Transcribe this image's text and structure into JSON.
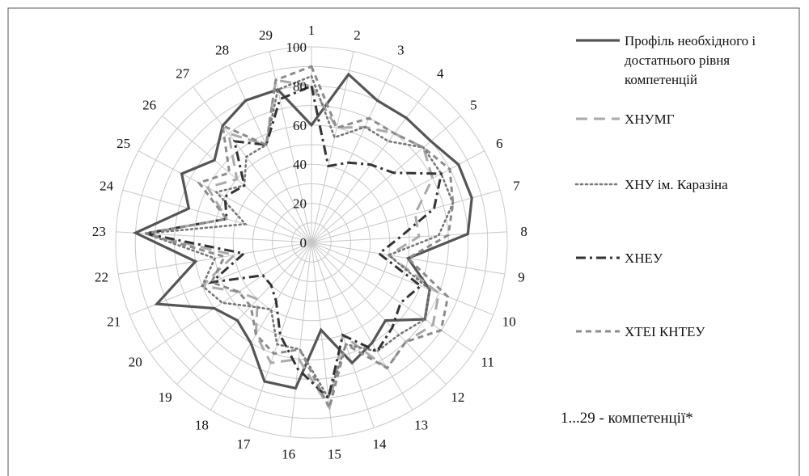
{
  "chart_data": {
    "type": "radar",
    "categories": [
      "1",
      "2",
      "3",
      "4",
      "5",
      "6",
      "7",
      "8",
      "9",
      "10",
      "11",
      "12",
      "13",
      "14",
      "15",
      "16",
      "17",
      "18",
      "19",
      "20",
      "21",
      "22",
      "23",
      "24",
      "25",
      "26",
      "27",
      "28",
      "29"
    ],
    "r_ticks": [
      "0",
      "20",
      "40",
      "60",
      "80",
      "100"
    ],
    "rlim": [
      0,
      100
    ],
    "grid": true,
    "legend_position": "right",
    "series": [
      {
        "name": [
          "Профіль необхідного і",
          "достатнього рівня",
          "компетенцій"
        ],
        "style": "solid",
        "color": "#555555",
        "values": [
          60,
          88,
          80,
          80,
          80,
          85,
          85,
          80,
          50,
          65,
          70,
          55,
          60,
          65,
          45,
          75,
          75,
          60,
          55,
          60,
          85,
          60,
          90,
          65,
          75,
          65,
          75,
          80,
          80
        ]
      },
      {
        "name": [
          "ХНУМГ"
        ],
        "style": "long-dash",
        "color": "#aaaaaa",
        "values": [
          80,
          60,
          65,
          70,
          75,
          70,
          55,
          55,
          40,
          70,
          75,
          70,
          75,
          50,
          85,
          60,
          65,
          55,
          40,
          45,
          60,
          40,
          85,
          45,
          60,
          50,
          70,
          55,
          85
        ]
      },
      {
        "name": [
          "ХНУ ім. Каразіна"
        ],
        "style": "dot",
        "color": "#777777",
        "values": [
          85,
          55,
          65,
          65,
          75,
          75,
          75,
          65,
          40,
          65,
          70,
          65,
          65,
          55,
          80,
          55,
          55,
          40,
          45,
          55,
          60,
          50,
          85,
          35,
          55,
          45,
          55,
          55,
          80
        ]
      },
      {
        "name": [
          "ХНЕУ"
        ],
        "style": "dash-dot",
        "color": "#333333",
        "values": [
          80,
          40,
          45,
          50,
          55,
          75,
          65,
          45,
          35,
          60,
          55,
          60,
          65,
          50,
          80,
          65,
          50,
          35,
          30,
          30,
          55,
          35,
          85,
          45,
          50,
          45,
          65,
          55,
          75
        ]
      },
      {
        "name": [
          "ХТЕІ КНТЕУ"
        ],
        "style": "short-dash",
        "color": "#8c8c8c",
        "values": [
          90,
          60,
          70,
          70,
          75,
          80,
          75,
          70,
          50,
          75,
          80,
          70,
          75,
          55,
          85,
          55,
          60,
          55,
          45,
          45,
          55,
          45,
          85,
          45,
          65,
          55,
          75,
          55,
          85
        ]
      }
    ],
    "annotations": [
      "1...29 - компетенції*"
    ]
  }
}
